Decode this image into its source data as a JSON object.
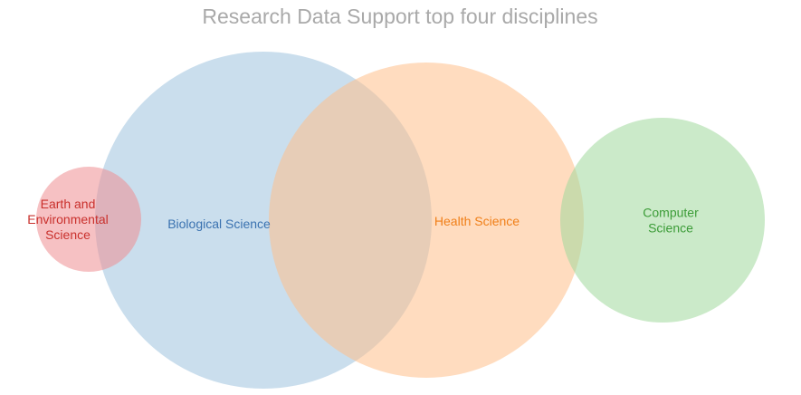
{
  "title": "Research Data Support top four disciplines",
  "sets": [
    {
      "label": [
        "Earth and",
        "Environmental",
        "Science"
      ]
    },
    {
      "label": [
        "Biological Science"
      ]
    },
    {
      "label": [
        "Health Science"
      ]
    },
    {
      "label": [
        "Computer",
        "Science"
      ]
    }
  ]
}
